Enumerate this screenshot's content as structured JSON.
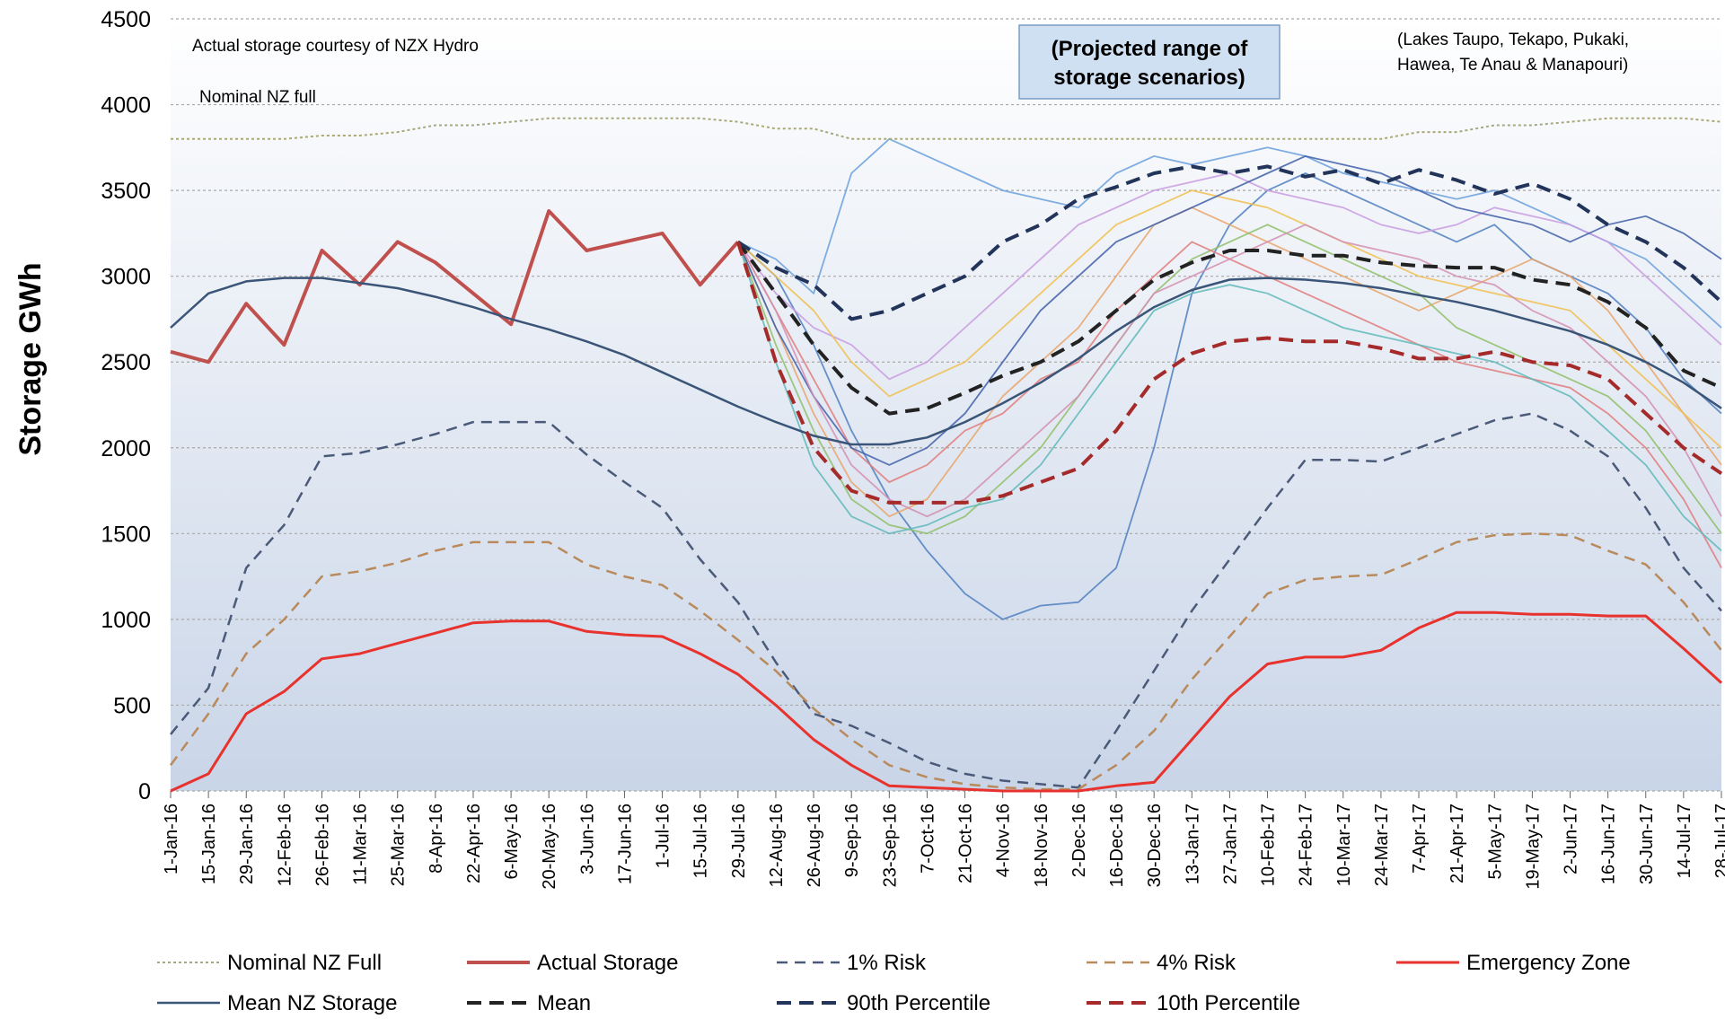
{
  "chart_data": {
    "type": "line",
    "y_label": "Storage GWh",
    "annotations": {
      "source": "Actual storage courtesy of NZX Hydro",
      "nominal": "Nominal NZ full",
      "projection": [
        "(Projected range of",
        "storage scenarios)"
      ],
      "lakes": [
        "(Lakes Taupo, Tekapo, Pukaki,",
        "Hawea, Te Anau & Manapouri)"
      ]
    },
    "categories": [
      "1-Jan-16",
      "15-Jan-16",
      "29-Jan-16",
      "12-Feb-16",
      "26-Feb-16",
      "11-Mar-16",
      "25-Mar-16",
      "8-Apr-16",
      "22-Apr-16",
      "6-May-16",
      "20-May-16",
      "3-Jun-16",
      "17-Jun-16",
      "1-Jul-16",
      "15-Jul-16",
      "29-Jul-16",
      "12-Aug-16",
      "26-Aug-16",
      "9-Sep-16",
      "23-Sep-16",
      "7-Oct-16",
      "21-Oct-16",
      "4-Nov-16",
      "18-Nov-16",
      "2-Dec-16",
      "16-Dec-16",
      "30-Dec-16",
      "13-Jan-17",
      "27-Jan-17",
      "10-Feb-17",
      "24-Feb-17",
      "10-Mar-17",
      "24-Mar-17",
      "7-Apr-17",
      "21-Apr-17",
      "5-May-17",
      "19-May-17",
      "2-Jun-17",
      "16-Jun-17",
      "30-Jun-17",
      "14-Jul-17",
      "28-Jul-17"
    ],
    "ylim": [
      0,
      4500
    ],
    "yticks": [
      0,
      500,
      1000,
      1500,
      2000,
      2500,
      3000,
      3500,
      4000,
      4500
    ],
    "grid": true,
    "scenarios": [
      {
        "color": "#4f7fc0",
        "values": [
          null,
          null,
          null,
          null,
          null,
          null,
          null,
          null,
          null,
          null,
          null,
          null,
          null,
          null,
          null,
          3200,
          3000,
          2600,
          2100,
          1700,
          1400,
          1150,
          1000,
          1080,
          1100,
          1300,
          2000,
          2900,
          3300,
          3500,
          3600,
          3500,
          3400,
          3300,
          3200,
          3300,
          3100,
          3000,
          2900,
          2700,
          2400,
          2200
        ]
      },
      {
        "color": "#6aa0dc",
        "values": [
          null,
          null,
          null,
          null,
          null,
          null,
          null,
          null,
          null,
          null,
          null,
          null,
          null,
          null,
          null,
          3200,
          3100,
          2900,
          3600,
          3800,
          3700,
          3600,
          3500,
          3450,
          3400,
          3600,
          3700,
          3650,
          3700,
          3750,
          3700,
          3600,
          3550,
          3500,
          3450,
          3500,
          3400,
          3300,
          3200,
          3100,
          2900,
          2700
        ]
      },
      {
        "color": "#e9a46a",
        "values": [
          null,
          null,
          null,
          null,
          null,
          null,
          null,
          null,
          null,
          null,
          null,
          null,
          null,
          null,
          null,
          3200,
          2700,
          2200,
          1800,
          1600,
          1700,
          2000,
          2300,
          2500,
          2700,
          3000,
          3300,
          3400,
          3300,
          3200,
          3100,
          3000,
          2900,
          2800,
          2900,
          3000,
          3100,
          3000,
          2800,
          2500,
          2200,
          1900
        ]
      },
      {
        "color": "#8fbf6a",
        "values": [
          null,
          null,
          null,
          null,
          null,
          null,
          null,
          null,
          null,
          null,
          null,
          null,
          null,
          null,
          null,
          3200,
          2600,
          2100,
          1700,
          1550,
          1500,
          1600,
          1800,
          2000,
          2300,
          2600,
          2900,
          3100,
          3200,
          3300,
          3200,
          3100,
          3000,
          2900,
          2700,
          2600,
          2500,
          2400,
          2300,
          2100,
          1800,
          1500
        ]
      },
      {
        "color": "#c99be0",
        "values": [
          null,
          null,
          null,
          null,
          null,
          null,
          null,
          null,
          null,
          null,
          null,
          null,
          null,
          null,
          null,
          3200,
          2900,
          2700,
          2600,
          2400,
          2500,
          2700,
          2900,
          3100,
          3300,
          3400,
          3500,
          3550,
          3600,
          3500,
          3450,
          3400,
          3300,
          3250,
          3300,
          3400,
          3350,
          3300,
          3200,
          3000,
          2800,
          2600
        ]
      },
      {
        "color": "#e07b7b",
        "values": [
          null,
          null,
          null,
          null,
          null,
          null,
          null,
          null,
          null,
          null,
          null,
          null,
          null,
          null,
          null,
          3200,
          2800,
          2400,
          2000,
          1800,
          1900,
          2100,
          2200,
          2400,
          2500,
          2800,
          3000,
          3200,
          3100,
          3000,
          2900,
          2800,
          2700,
          2600,
          2500,
          2450,
          2400,
          2350,
          2200,
          2000,
          1700,
          1300
        ]
      },
      {
        "color": "#5fb8b8",
        "values": [
          null,
          null,
          null,
          null,
          null,
          null,
          null,
          null,
          null,
          null,
          null,
          null,
          null,
          null,
          null,
          3200,
          2500,
          1900,
          1600,
          1500,
          1550,
          1650,
          1700,
          1900,
          2200,
          2500,
          2800,
          2900,
          2950,
          2900,
          2800,
          2700,
          2650,
          2600,
          2550,
          2500,
          2400,
          2300,
          2100,
          1900,
          1600,
          1400
        ]
      },
      {
        "color": "#f0c050",
        "values": [
          null,
          null,
          null,
          null,
          null,
          null,
          null,
          null,
          null,
          null,
          null,
          null,
          null,
          null,
          null,
          3200,
          3000,
          2800,
          2500,
          2300,
          2400,
          2500,
          2700,
          2900,
          3100,
          3300,
          3400,
          3500,
          3450,
          3400,
          3300,
          3200,
          3100,
          3000,
          2950,
          2900,
          2850,
          2800,
          2600,
          2400,
          2200,
          2000
        ]
      },
      {
        "color": "#3f5fa8",
        "values": [
          null,
          null,
          null,
          null,
          null,
          null,
          null,
          null,
          null,
          null,
          null,
          null,
          null,
          null,
          null,
          3200,
          2700,
          2300,
          2000,
          1900,
          2000,
          2200,
          2500,
          2800,
          3000,
          3200,
          3300,
          3400,
          3500,
          3600,
          3700,
          3650,
          3600,
          3500,
          3400,
          3350,
          3300,
          3200,
          3300,
          3350,
          3250,
          3100
        ]
      },
      {
        "color": "#d48fb0",
        "values": [
          null,
          null,
          null,
          null,
          null,
          null,
          null,
          null,
          null,
          null,
          null,
          null,
          null,
          null,
          null,
          3200,
          2800,
          2300,
          1900,
          1700,
          1600,
          1700,
          1900,
          2100,
          2300,
          2600,
          2900,
          3000,
          3100,
          3200,
          3300,
          3200,
          3150,
          3100,
          3000,
          2950,
          2800,
          2700,
          2500,
          2300,
          2000,
          1600
        ]
      }
    ],
    "series": [
      {
        "name": "Nominal NZ Full",
        "color": "#a8a878",
        "dash": "dotted",
        "width": 2,
        "values": [
          3800,
          3800,
          3800,
          3800,
          3820,
          3820,
          3840,
          3880,
          3880,
          3900,
          3920,
          3920,
          3920,
          3920,
          3920,
          3900,
          3860,
          3860,
          3800,
          3800,
          3800,
          3800,
          3800,
          3800,
          3800,
          3800,
          3800,
          3800,
          3800,
          3800,
          3800,
          3800,
          3800,
          3840,
          3840,
          3880,
          3880,
          3900,
          3920,
          3920,
          3920,
          3900
        ]
      },
      {
        "name": "Actual Storage",
        "color": "#c0504d",
        "dash": "solid",
        "width": 4,
        "values": [
          2560,
          2500,
          2840,
          2600,
          3150,
          2950,
          3200,
          3080,
          2900,
          2720,
          3380,
          3150,
          3200,
          3250,
          2950,
          3200,
          null,
          null,
          null,
          null,
          null,
          null,
          null,
          null,
          null,
          null,
          null,
          null,
          null,
          null,
          null,
          null,
          null,
          null,
          null,
          null,
          null,
          null,
          null,
          null,
          null,
          null
        ]
      },
      {
        "name": "1% Risk",
        "color": "#4a5a78",
        "dash": "dashed",
        "width": 2.5,
        "values": [
          330,
          600,
          1300,
          1550,
          1950,
          1970,
          2020,
          2080,
          2150,
          2150,
          2150,
          1960,
          1800,
          1650,
          1350,
          1100,
          750,
          450,
          380,
          280,
          170,
          100,
          60,
          40,
          20,
          350,
          700,
          1050,
          1350,
          1650,
          1930,
          1930,
          1920,
          2000,
          2080,
          2160,
          2200,
          2100,
          1950,
          1650,
          1300,
          1050
        ]
      },
      {
        "name": "4% Risk",
        "color": "#b88a5c",
        "dash": "dashed",
        "width": 2.5,
        "values": [
          150,
          450,
          800,
          1000,
          1250,
          1280,
          1330,
          1400,
          1450,
          1450,
          1450,
          1320,
          1250,
          1200,
          1050,
          880,
          700,
          480,
          300,
          150,
          80,
          40,
          20,
          10,
          10,
          150,
          350,
          650,
          900,
          1150,
          1230,
          1250,
          1260,
          1350,
          1450,
          1490,
          1500,
          1490,
          1400,
          1320,
          1100,
          820
        ]
      },
      {
        "name": "Emergency Zone",
        "color": "#e8322e",
        "dash": "solid",
        "width": 3,
        "values": [
          0,
          100,
          450,
          580,
          770,
          800,
          860,
          920,
          980,
          990,
          990,
          930,
          910,
          900,
          800,
          680,
          500,
          300,
          150,
          30,
          20,
          10,
          0,
          0,
          0,
          30,
          50,
          300,
          550,
          740,
          780,
          780,
          820,
          950,
          1040,
          1040,
          1030,
          1030,
          1020,
          1020,
          830,
          630
        ]
      },
      {
        "name": "Mean NZ Storage",
        "color": "#3a5577",
        "dash": "solid",
        "width": 2.5,
        "values": [
          2700,
          2900,
          2970,
          2990,
          2990,
          2960,
          2930,
          2880,
          2820,
          2750,
          2690,
          2620,
          2540,
          2440,
          2340,
          2240,
          2150,
          2070,
          2020,
          2020,
          2060,
          2150,
          2260,
          2380,
          2520,
          2680,
          2820,
          2920,
          2980,
          2990,
          2980,
          2960,
          2930,
          2890,
          2850,
          2800,
          2740,
          2680,
          2600,
          2500,
          2380,
          2230
        ]
      },
      {
        "name": "Mean",
        "color": "#222222",
        "dash": "bold",
        "width": 4,
        "values": [
          null,
          null,
          null,
          null,
          null,
          null,
          null,
          null,
          null,
          null,
          null,
          null,
          null,
          null,
          null,
          3200,
          2900,
          2600,
          2350,
          2200,
          2230,
          2320,
          2420,
          2500,
          2620,
          2800,
          2980,
          3080,
          3150,
          3150,
          3120,
          3120,
          3080,
          3060,
          3050,
          3050,
          2980,
          2950,
          2850,
          2700,
          2450,
          2350
        ]
      },
      {
        "name": "90th Percentile",
        "color": "#22345a",
        "dash": "bold",
        "width": 4,
        "values": [
          null,
          null,
          null,
          null,
          null,
          null,
          null,
          null,
          null,
          null,
          null,
          null,
          null,
          null,
          null,
          3200,
          3050,
          2950,
          2750,
          2800,
          2900,
          3000,
          3200,
          3300,
          3450,
          3520,
          3600,
          3640,
          3600,
          3640,
          3580,
          3620,
          3540,
          3620,
          3560,
          3480,
          3540,
          3450,
          3300,
          3200,
          3050,
          2850
        ]
      },
      {
        "name": "10th Percentile",
        "color": "#a52a2a",
        "dash": "bold",
        "width": 4,
        "values": [
          null,
          null,
          null,
          null,
          null,
          null,
          null,
          null,
          null,
          null,
          null,
          null,
          null,
          null,
          null,
          3200,
          2500,
          2000,
          1750,
          1680,
          1680,
          1680,
          1720,
          1800,
          1880,
          2100,
          2400,
          2550,
          2620,
          2640,
          2620,
          2620,
          2580,
          2520,
          2520,
          2560,
          2500,
          2480,
          2400,
          2200,
          2000,
          1850
        ]
      }
    ]
  }
}
